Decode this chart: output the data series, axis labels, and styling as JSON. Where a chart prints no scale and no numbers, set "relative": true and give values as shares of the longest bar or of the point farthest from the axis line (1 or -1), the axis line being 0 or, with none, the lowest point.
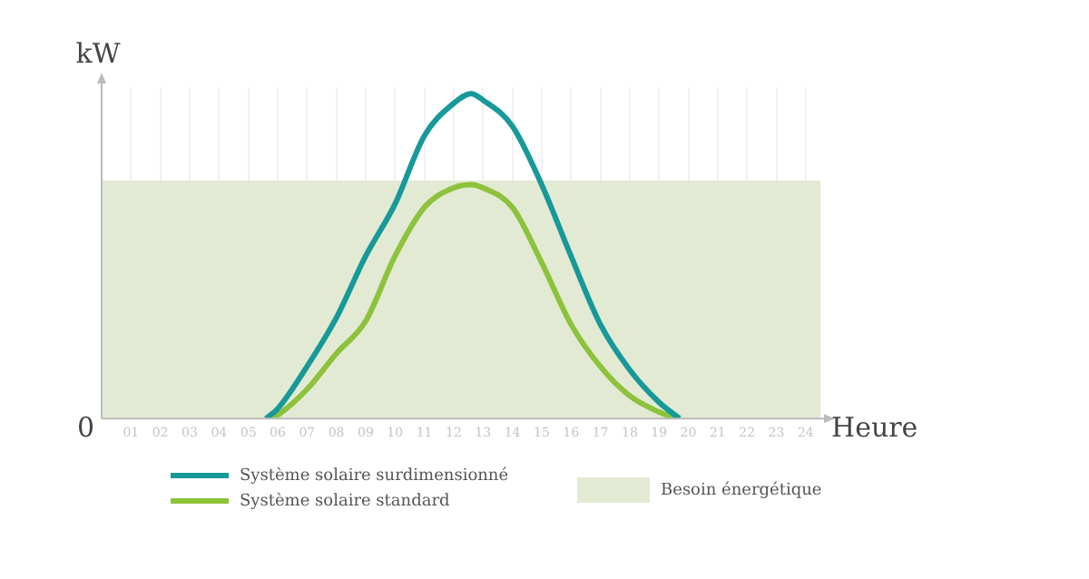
{
  "chart_data": {
    "type": "line",
    "relative": true,
    "xlabel": "Heure",
    "ylabel": "kW",
    "annotations": [
      "0"
    ],
    "xlim": [
      0,
      24.5
    ],
    "xticks": [
      {
        "value": 1,
        "label": "01"
      },
      {
        "value": 2,
        "label": "02"
      },
      {
        "value": 3,
        "label": "03"
      },
      {
        "value": 4,
        "label": "04"
      },
      {
        "value": 5,
        "label": "05"
      },
      {
        "value": 6,
        "label": "06"
      },
      {
        "value": 7,
        "label": "07"
      },
      {
        "value": 8,
        "label": "08"
      },
      {
        "value": 9,
        "label": "09"
      },
      {
        "value": 10,
        "label": "10"
      },
      {
        "value": 11,
        "label": "11"
      },
      {
        "value": 12,
        "label": "12"
      },
      {
        "value": 13,
        "label": "13"
      },
      {
        "value": 14,
        "label": "14"
      },
      {
        "value": 15,
        "label": "15"
      },
      {
        "value": 16,
        "label": "16"
      },
      {
        "value": 17,
        "label": "17"
      },
      {
        "value": 18,
        "label": "18"
      },
      {
        "value": 19,
        "label": "19"
      },
      {
        "value": 20,
        "label": "20"
      },
      {
        "value": 21,
        "label": "21"
      },
      {
        "value": 22,
        "label": "22"
      },
      {
        "value": 23,
        "label": "23"
      },
      {
        "value": 24,
        "label": "24"
      }
    ],
    "grid": "x",
    "legend": "bottom",
    "marker": "none",
    "line_style": "solid",
    "series": [
      {
        "name": "Besoin énergétique",
        "type": "area",
        "color": "#e3ead3",
        "x": [
          0,
          24.5
        ],
        "values": [
          0.73,
          0.73
        ]
      },
      {
        "name": "Système solaire surdimensionné",
        "color": "#17999a",
        "x": [
          5.6,
          6,
          7,
          8,
          9,
          10,
          11,
          12,
          12.6,
          13,
          14,
          15,
          16,
          17,
          18,
          19,
          19.7
        ],
        "values": [
          0,
          0.03,
          0.16,
          0.31,
          0.5,
          0.66,
          0.87,
          0.97,
          1,
          0.98,
          0.9,
          0.72,
          0.5,
          0.29,
          0.15,
          0.05,
          0
        ]
      },
      {
        "name": "Système solaire standard",
        "color": "#8dc23c",
        "x": [
          5.8,
          6,
          7,
          8,
          9,
          10,
          11,
          12,
          12.6,
          13,
          14,
          15,
          16,
          17,
          18,
          19,
          19.6
        ],
        "values": [
          0,
          0.01,
          0.09,
          0.2,
          0.3,
          0.5,
          0.65,
          0.71,
          0.72,
          0.71,
          0.65,
          0.48,
          0.29,
          0.16,
          0.07,
          0.02,
          0
        ]
      }
    ]
  }
}
